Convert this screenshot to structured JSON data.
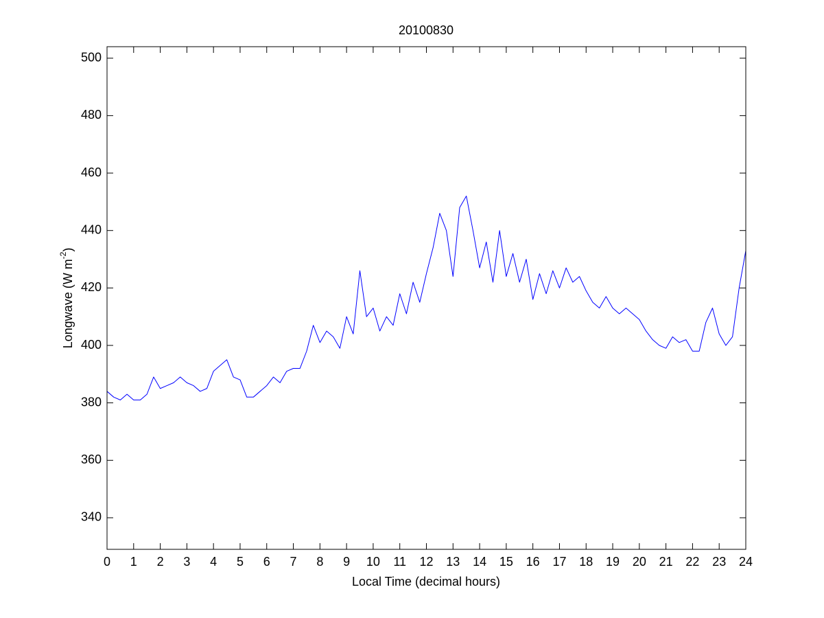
{
  "chart_data": {
    "type": "line",
    "title": "20100830",
    "xlabel": "Local Time (decimal hours)",
    "ylabel": [
      "Longwave (W m",
      "-2",
      ")"
    ],
    "x": [
      0,
      0.25,
      0.5,
      0.75,
      1,
      1.25,
      1.5,
      1.75,
      2,
      2.25,
      2.5,
      2.75,
      3,
      3.25,
      3.5,
      3.75,
      4,
      4.25,
      4.5,
      4.75,
      5,
      5.25,
      5.5,
      5.75,
      6,
      6.25,
      6.5,
      6.75,
      7,
      7.25,
      7.5,
      7.75,
      8,
      8.25,
      8.5,
      8.75,
      9,
      9.25,
      9.5,
      9.75,
      10,
      10.25,
      10.5,
      10.75,
      11,
      11.25,
      11.5,
      11.75,
      12,
      12.25,
      12.5,
      12.75,
      13,
      13.25,
      13.5,
      13.75,
      14,
      14.25,
      14.5,
      14.75,
      15,
      15.25,
      15.5,
      15.75,
      16,
      16.25,
      16.5,
      16.75,
      17,
      17.25,
      17.5,
      17.75,
      18,
      18.25,
      18.5,
      18.75,
      19,
      19.25,
      19.5,
      19.75,
      20,
      20.25,
      20.5,
      20.75,
      21,
      21.25,
      21.5,
      21.75,
      22,
      22.25,
      22.5,
      22.75,
      23,
      23.25,
      23.5,
      23.75,
      24
    ],
    "series": [
      {
        "name": "Longwave",
        "color": "#0000ff",
        "values": [
          384,
          382,
          381,
          383,
          381,
          381,
          383,
          389,
          385,
          386,
          387,
          389,
          387,
          386,
          384,
          385,
          391,
          393,
          395,
          389,
          388,
          382,
          382,
          384,
          386,
          389,
          387,
          391,
          392,
          392,
          398,
          407,
          401,
          405,
          403,
          399,
          410,
          404,
          426,
          410,
          413,
          405,
          410,
          407,
          418,
          411,
          422,
          415,
          425,
          434,
          446,
          440,
          424,
          448,
          452,
          440,
          427,
          436,
          422,
          440,
          424,
          432,
          422,
          430,
          416,
          425,
          418,
          426,
          420,
          427,
          422,
          424,
          419,
          415,
          413,
          417,
          413,
          411,
          413,
          411,
          409,
          405,
          402,
          400,
          399,
          403,
          401,
          402,
          398,
          398,
          408,
          413,
          404,
          400,
          403,
          420,
          433
        ]
      }
    ],
    "xlim": [
      0,
      24
    ],
    "xticks": [
      0,
      1,
      2,
      3,
      4,
      5,
      6,
      7,
      8,
      9,
      10,
      11,
      12,
      13,
      14,
      15,
      16,
      17,
      18,
      19,
      20,
      21,
      22,
      23,
      24
    ],
    "ylim": [
      329,
      504
    ],
    "yticks": [
      340,
      360,
      380,
      400,
      420,
      440,
      460,
      480,
      500
    ],
    "grid": false
  }
}
